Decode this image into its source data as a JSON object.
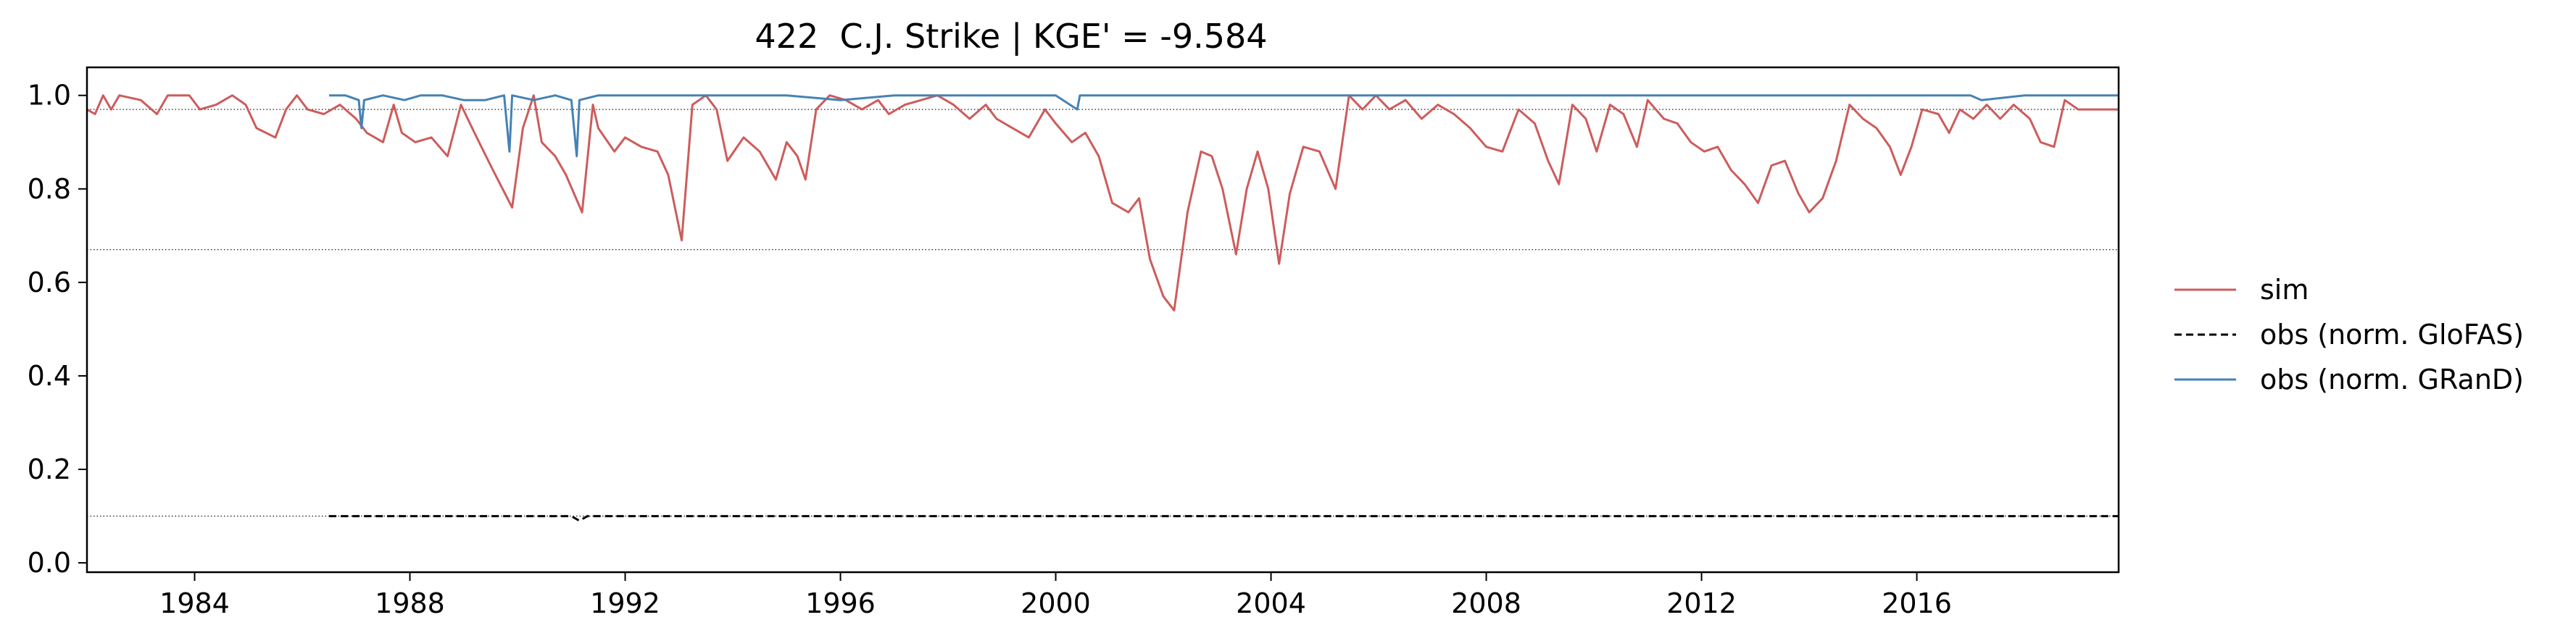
{
  "chart_data": {
    "type": "line",
    "title": "422  C.J. Strike | KGE' = -9.584",
    "xlabel": "",
    "ylabel": "",
    "xlim": [
      1982.0,
      2019.75
    ],
    "ylim": [
      -0.02,
      1.06
    ],
    "x_ticks": [
      1984,
      1988,
      1992,
      1996,
      2000,
      2004,
      2008,
      2012,
      2016
    ],
    "x_tick_labels": [
      "1984",
      "1988",
      "1992",
      "1996",
      "2000",
      "2004",
      "2008",
      "2012",
      "2016"
    ],
    "y_ticks": [
      0.0,
      0.2,
      0.4,
      0.6,
      0.8,
      1.0
    ],
    "y_tick_labels": [
      "0.0",
      "0.2",
      "0.4",
      "0.6",
      "0.8",
      "1.0"
    ],
    "grid": false,
    "legend_position": "right",
    "reference_lines": [
      0.1,
      0.67,
      0.97
    ],
    "series": [
      {
        "name": "sim",
        "color": "#cd5c5c",
        "dash": "solid",
        "points": [
          [
            1982.0,
            0.97
          ],
          [
            1982.15,
            0.96
          ],
          [
            1982.3,
            1.0
          ],
          [
            1982.45,
            0.97
          ],
          [
            1982.6,
            1.0
          ],
          [
            1983.0,
            0.99
          ],
          [
            1983.3,
            0.96
          ],
          [
            1983.5,
            1.0
          ],
          [
            1983.9,
            1.0
          ],
          [
            1984.1,
            0.97
          ],
          [
            1984.4,
            0.98
          ],
          [
            1984.7,
            1.0
          ],
          [
            1984.95,
            0.98
          ],
          [
            1985.15,
            0.93
          ],
          [
            1985.5,
            0.91
          ],
          [
            1985.7,
            0.97
          ],
          [
            1985.9,
            1.0
          ],
          [
            1986.1,
            0.97
          ],
          [
            1986.4,
            0.96
          ],
          [
            1986.7,
            0.98
          ],
          [
            1987.0,
            0.95
          ],
          [
            1987.2,
            0.92
          ],
          [
            1987.5,
            0.9
          ],
          [
            1987.7,
            0.98
          ],
          [
            1987.85,
            0.92
          ],
          [
            1988.1,
            0.9
          ],
          [
            1988.4,
            0.91
          ],
          [
            1988.7,
            0.87
          ],
          [
            1988.95,
            0.98
          ],
          [
            1989.2,
            0.92
          ],
          [
            1989.5,
            0.85
          ],
          [
            1989.9,
            0.76
          ],
          [
            1990.1,
            0.93
          ],
          [
            1990.3,
            1.0
          ],
          [
            1990.45,
            0.9
          ],
          [
            1990.7,
            0.87
          ],
          [
            1990.9,
            0.83
          ],
          [
            1991.2,
            0.75
          ],
          [
            1991.4,
            0.98
          ],
          [
            1991.5,
            0.93
          ],
          [
            1991.8,
            0.88
          ],
          [
            1992.0,
            0.91
          ],
          [
            1992.3,
            0.89
          ],
          [
            1992.6,
            0.88
          ],
          [
            1992.8,
            0.83
          ],
          [
            1993.05,
            0.69
          ],
          [
            1993.25,
            0.98
          ],
          [
            1993.5,
            1.0
          ],
          [
            1993.7,
            0.97
          ],
          [
            1993.9,
            0.86
          ],
          [
            1994.2,
            0.91
          ],
          [
            1994.5,
            0.88
          ],
          [
            1994.8,
            0.82
          ],
          [
            1995.0,
            0.9
          ],
          [
            1995.2,
            0.87
          ],
          [
            1995.35,
            0.82
          ],
          [
            1995.55,
            0.97
          ],
          [
            1995.8,
            1.0
          ],
          [
            1996.1,
            0.99
          ],
          [
            1996.4,
            0.97
          ],
          [
            1996.7,
            0.99
          ],
          [
            1996.9,
            0.96
          ],
          [
            1997.2,
            0.98
          ],
          [
            1997.5,
            0.99
          ],
          [
            1997.8,
            1.0
          ],
          [
            1998.1,
            0.98
          ],
          [
            1998.4,
            0.95
          ],
          [
            1998.7,
            0.98
          ],
          [
            1998.9,
            0.95
          ],
          [
            1999.2,
            0.93
          ],
          [
            1999.5,
            0.91
          ],
          [
            1999.8,
            0.97
          ],
          [
            2000.0,
            0.94
          ],
          [
            2000.3,
            0.9
          ],
          [
            2000.55,
            0.92
          ],
          [
            2000.8,
            0.87
          ],
          [
            2001.05,
            0.77
          ],
          [
            2001.35,
            0.75
          ],
          [
            2001.55,
            0.78
          ],
          [
            2001.75,
            0.65
          ],
          [
            2002.0,
            0.57
          ],
          [
            2002.2,
            0.54
          ],
          [
            2002.45,
            0.75
          ],
          [
            2002.7,
            0.88
          ],
          [
            2002.9,
            0.87
          ],
          [
            2003.1,
            0.8
          ],
          [
            2003.35,
            0.66
          ],
          [
            2003.55,
            0.8
          ],
          [
            2003.75,
            0.88
          ],
          [
            2003.95,
            0.8
          ],
          [
            2004.15,
            0.64
          ],
          [
            2004.35,
            0.79
          ],
          [
            2004.6,
            0.89
          ],
          [
            2004.9,
            0.88
          ],
          [
            2005.2,
            0.8
          ],
          [
            2005.45,
            1.0
          ],
          [
            2005.7,
            0.97
          ],
          [
            2005.95,
            1.0
          ],
          [
            2006.2,
            0.97
          ],
          [
            2006.5,
            0.99
          ],
          [
            2006.8,
            0.95
          ],
          [
            2007.1,
            0.98
          ],
          [
            2007.4,
            0.96
          ],
          [
            2007.7,
            0.93
          ],
          [
            2008.0,
            0.89
          ],
          [
            2008.3,
            0.88
          ],
          [
            2008.6,
            0.97
          ],
          [
            2008.9,
            0.94
          ],
          [
            2009.15,
            0.86
          ],
          [
            2009.35,
            0.81
          ],
          [
            2009.6,
            0.98
          ],
          [
            2009.85,
            0.95
          ],
          [
            2010.05,
            0.88
          ],
          [
            2010.3,
            0.98
          ],
          [
            2010.55,
            0.96
          ],
          [
            2010.8,
            0.89
          ],
          [
            2011.0,
            0.99
          ],
          [
            2011.3,
            0.95
          ],
          [
            2011.55,
            0.94
          ],
          [
            2011.8,
            0.9
          ],
          [
            2012.05,
            0.88
          ],
          [
            2012.3,
            0.89
          ],
          [
            2012.55,
            0.84
          ],
          [
            2012.8,
            0.81
          ],
          [
            2013.05,
            0.77
          ],
          [
            2013.3,
            0.85
          ],
          [
            2013.55,
            0.86
          ],
          [
            2013.8,
            0.79
          ],
          [
            2014.0,
            0.75
          ],
          [
            2014.25,
            0.78
          ],
          [
            2014.5,
            0.86
          ],
          [
            2014.75,
            0.98
          ],
          [
            2015.0,
            0.95
          ],
          [
            2015.25,
            0.93
          ],
          [
            2015.5,
            0.89
          ],
          [
            2015.7,
            0.83
          ],
          [
            2015.9,
            0.89
          ],
          [
            2016.1,
            0.97
          ],
          [
            2016.4,
            0.96
          ],
          [
            2016.6,
            0.92
          ],
          [
            2016.8,
            0.97
          ],
          [
            2017.05,
            0.95
          ],
          [
            2017.3,
            0.98
          ],
          [
            2017.55,
            0.95
          ],
          [
            2017.8,
            0.98
          ],
          [
            2018.1,
            0.95
          ],
          [
            2018.3,
            0.9
          ],
          [
            2018.55,
            0.89
          ],
          [
            2018.75,
            0.99
          ],
          [
            2019.0,
            0.97
          ],
          [
            2019.3,
            0.97
          ],
          [
            2019.75,
            0.97
          ]
        ]
      },
      {
        "name": "obs (norm. GloFAS)",
        "color": "#000000",
        "dash": "dashed",
        "points": [
          [
            1986.5,
            0.1
          ],
          [
            1988.0,
            0.1
          ],
          [
            1989.5,
            0.1
          ],
          [
            1991.0,
            0.1
          ],
          [
            1991.15,
            0.09
          ],
          [
            1991.3,
            0.1
          ],
          [
            1994.0,
            0.1
          ],
          [
            1998.0,
            0.1
          ],
          [
            2002.0,
            0.1
          ],
          [
            2006.0,
            0.1
          ],
          [
            2010.0,
            0.1
          ],
          [
            2014.0,
            0.1
          ],
          [
            2019.75,
            0.1
          ]
        ]
      },
      {
        "name": "obs (norm. GRanD)",
        "color": "#4682b4",
        "dash": "solid",
        "points": [
          [
            1986.5,
            1.0
          ],
          [
            1986.8,
            1.0
          ],
          [
            1987.05,
            0.99
          ],
          [
            1987.1,
            0.93
          ],
          [
            1987.15,
            0.99
          ],
          [
            1987.5,
            1.0
          ],
          [
            1987.9,
            0.99
          ],
          [
            1988.2,
            1.0
          ],
          [
            1988.6,
            1.0
          ],
          [
            1989.0,
            0.99
          ],
          [
            1989.4,
            0.99
          ],
          [
            1989.75,
            1.0
          ],
          [
            1989.85,
            0.88
          ],
          [
            1989.9,
            1.0
          ],
          [
            1990.3,
            0.99
          ],
          [
            1990.7,
            1.0
          ],
          [
            1991.0,
            0.99
          ],
          [
            1991.1,
            0.87
          ],
          [
            1991.15,
            0.99
          ],
          [
            1991.5,
            1.0
          ],
          [
            1992.0,
            1.0
          ],
          [
            1993.0,
            1.0
          ],
          [
            1994.0,
            1.0
          ],
          [
            1995.0,
            1.0
          ],
          [
            1996.0,
            0.99
          ],
          [
            1997.0,
            1.0
          ],
          [
            1998.0,
            1.0
          ],
          [
            1999.0,
            1.0
          ],
          [
            2000.0,
            1.0
          ],
          [
            2000.4,
            0.97
          ],
          [
            2000.45,
            1.0
          ],
          [
            2002.0,
            1.0
          ],
          [
            2004.0,
            1.0
          ],
          [
            2006.0,
            1.0
          ],
          [
            2008.0,
            1.0
          ],
          [
            2010.0,
            1.0
          ],
          [
            2012.0,
            1.0
          ],
          [
            2014.0,
            1.0
          ],
          [
            2016.0,
            1.0
          ],
          [
            2017.0,
            1.0
          ],
          [
            2017.2,
            0.99
          ],
          [
            2018.0,
            1.0
          ],
          [
            2019.75,
            1.0
          ]
        ]
      }
    ]
  }
}
